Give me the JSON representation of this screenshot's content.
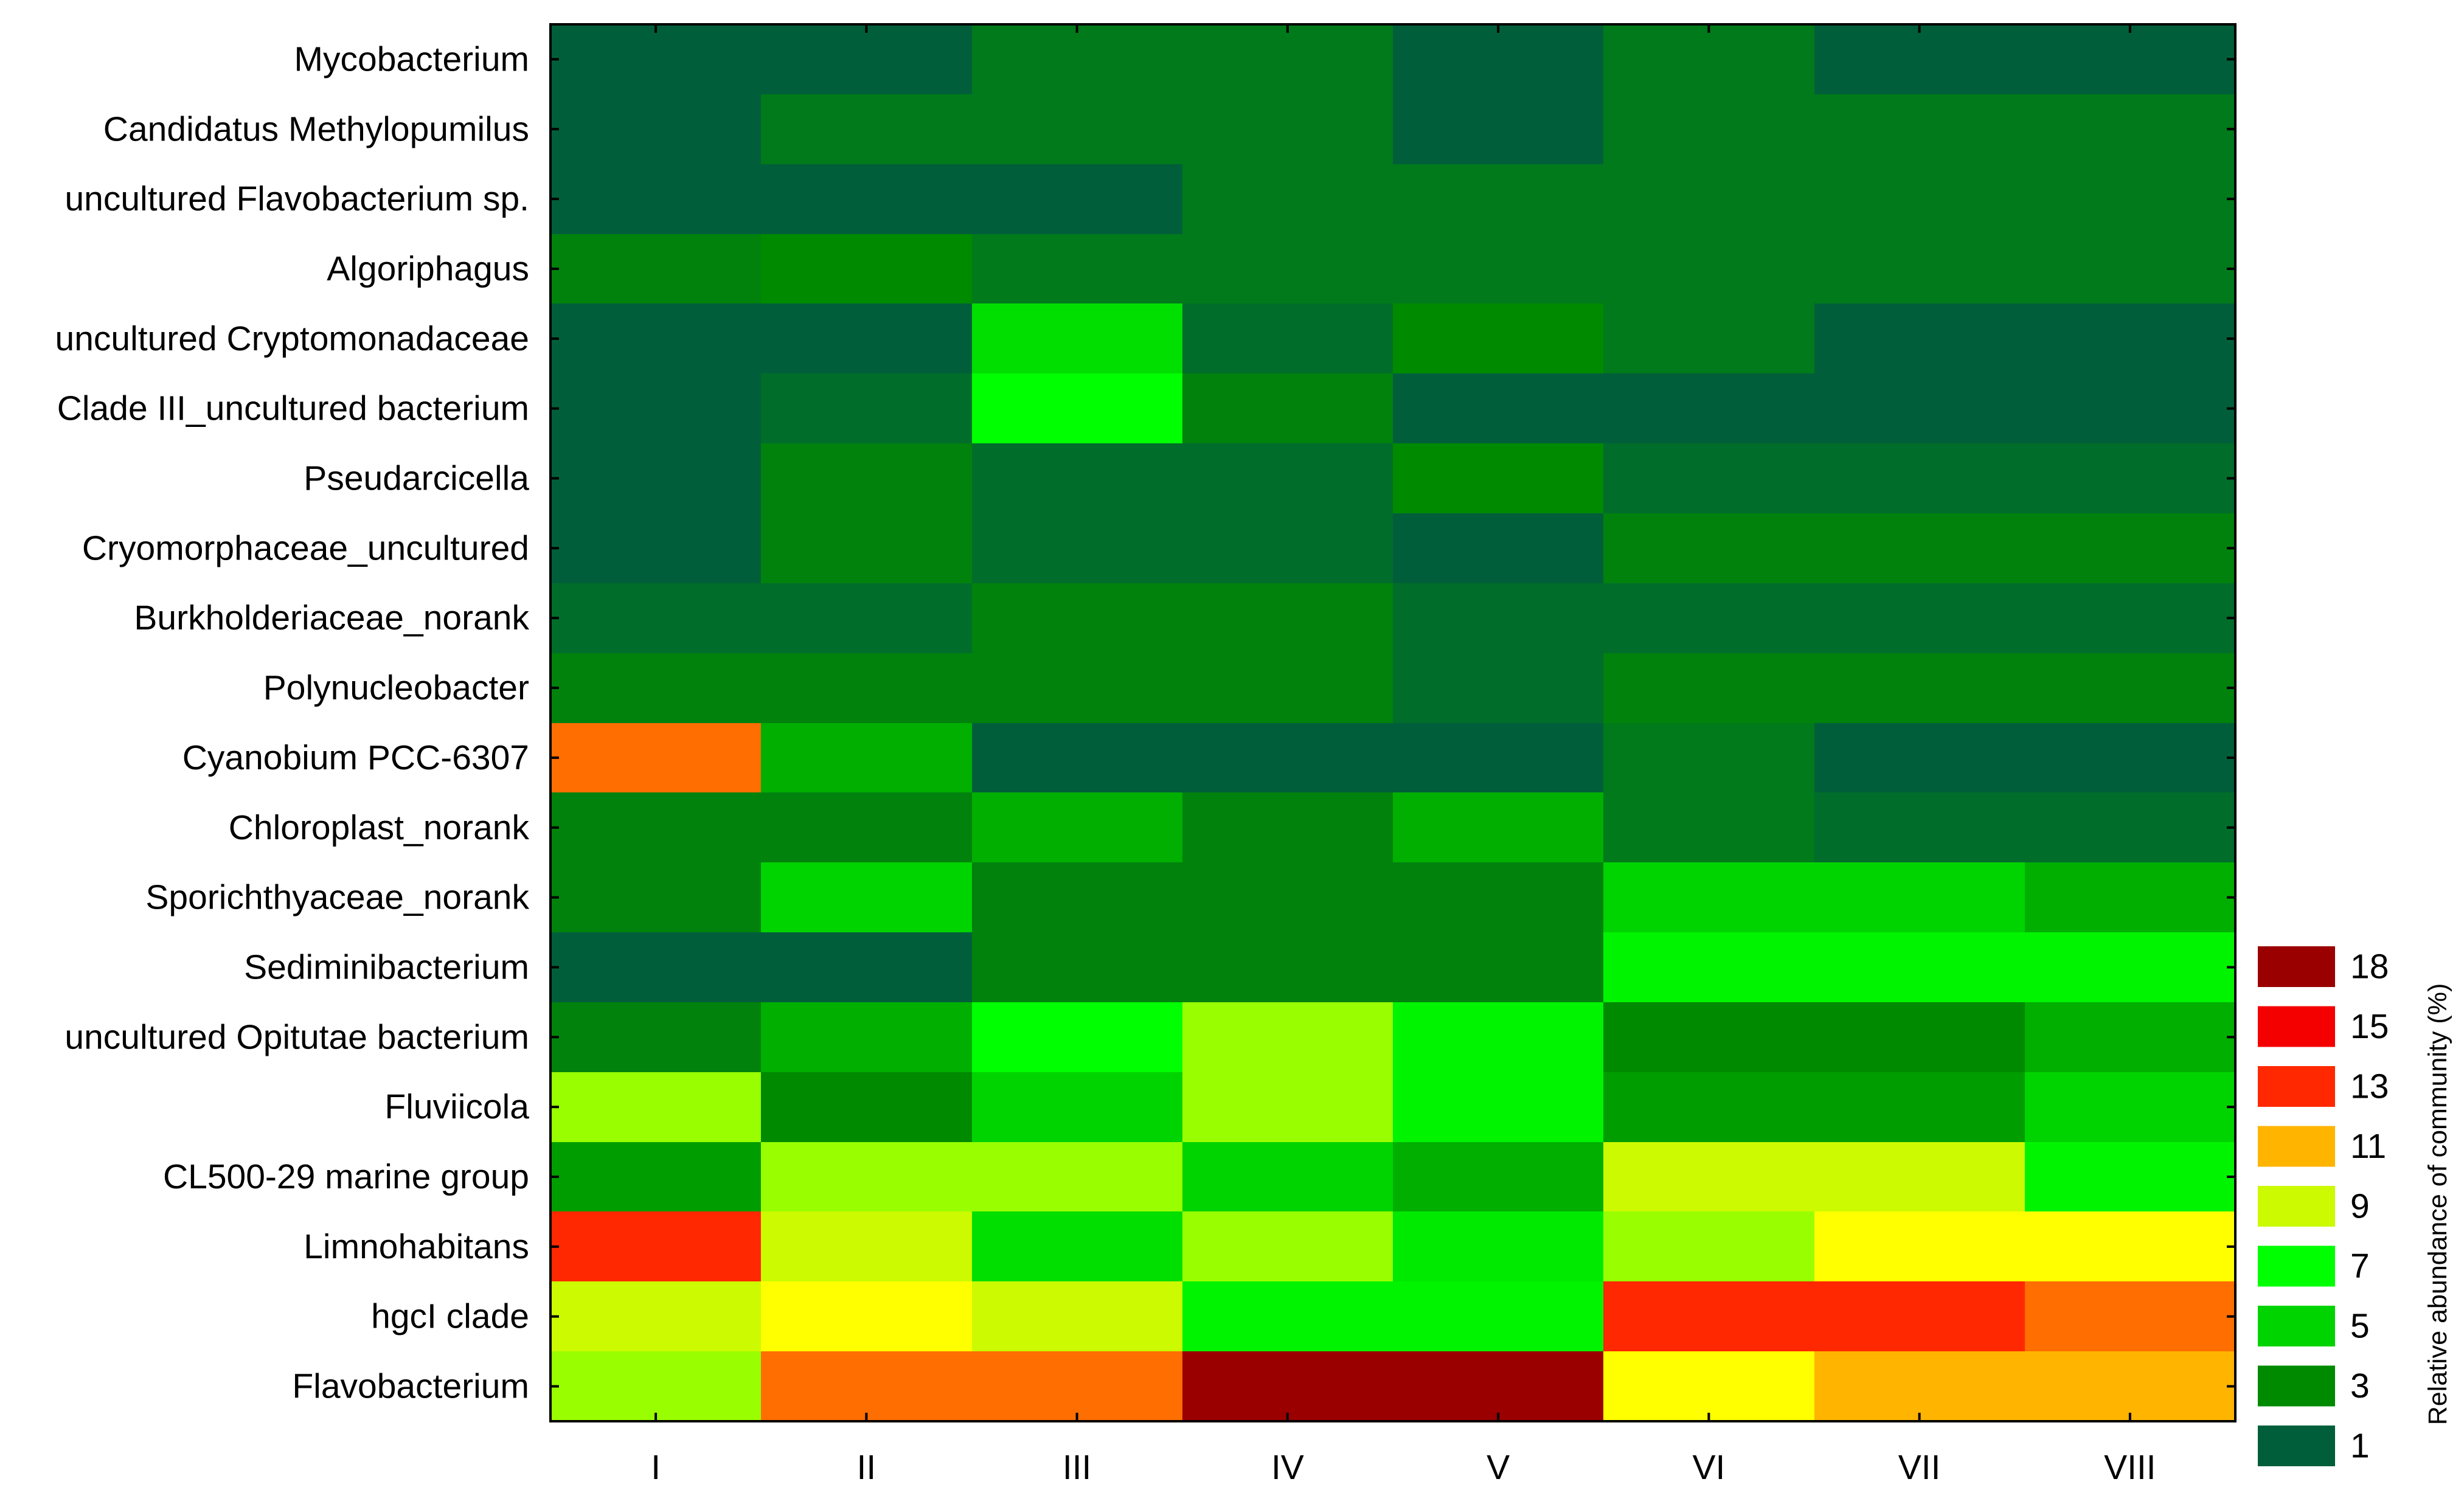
{
  "chart_data": {
    "type": "heatmap",
    "rows": [
      "Mycobacterium",
      "Candidatus Methylopumilus",
      "uncultured Flavobacterium sp.",
      "Algoriphagus",
      "uncultured Cryptomonadaceae",
      "Clade III_uncultured bacterium",
      "Pseudarcicella",
      "Cryomorphaceae_uncultured",
      "Burkholderiaceae_norank",
      "Polynucleobacter",
      "Cyanobium PCC-6307",
      "Chloroplast_norank",
      "Sporichthyaceae_norank",
      "Sediminibacterium",
      "uncultured Opitutae bacterium",
      "Fluviicola",
      "CL500-29 marine group",
      "Limnohabitans",
      "hgcI clade",
      "Flavobacterium"
    ],
    "columns": [
      "I",
      "II",
      "III",
      "IV",
      "V",
      "VI",
      "VII",
      "VIII"
    ],
    "values": [
      [
        1,
        1,
        2,
        2,
        1,
        2,
        1,
        1
      ],
      [
        1,
        2,
        2,
        2,
        1,
        2,
        2,
        2
      ],
      [
        1,
        1,
        1,
        2,
        2,
        2,
        2,
        2
      ],
      [
        2.5,
        3,
        2,
        2,
        2,
        2,
        2,
        2
      ],
      [
        1,
        1,
        5.5,
        1.5,
        3,
        2,
        1,
        1
      ],
      [
        1,
        1.5,
        7,
        2.5,
        1,
        1,
        1,
        1
      ],
      [
        1,
        2.5,
        1.5,
        1.5,
        3,
        1.5,
        1.5,
        1.5
      ],
      [
        1,
        2.5,
        1.5,
        1.5,
        1,
        2.5,
        2.5,
        2.5
      ],
      [
        1.5,
        1.5,
        2.5,
        2.5,
        1.5,
        1.5,
        1.5,
        1.5
      ],
      [
        2.5,
        2.5,
        2.5,
        2.5,
        1.5,
        2.5,
        2.5,
        2.5
      ],
      [
        12,
        4,
        1,
        1,
        1,
        2,
        1,
        1
      ],
      [
        2.5,
        2.5,
        4,
        2.5,
        4,
        2,
        1.5,
        1.5
      ],
      [
        2.5,
        5,
        2.5,
        2.5,
        2.5,
        5,
        5,
        4
      ],
      [
        1,
        1,
        2.5,
        2.5,
        2.5,
        6.5,
        6.5,
        6.5
      ],
      [
        2.5,
        4,
        7,
        8.5,
        6.5,
        3,
        3,
        4
      ],
      [
        8.5,
        3,
        5,
        8.5,
        6.5,
        3.5,
        3.5,
        5
      ],
      [
        3.5,
        8.5,
        8.5,
        5,
        4,
        9,
        9,
        6.5
      ],
      [
        13,
        9,
        5.5,
        8.5,
        6,
        8.5,
        10,
        10
      ],
      [
        9,
        10,
        9,
        6.5,
        6.5,
        13,
        13,
        12
      ],
      [
        8.5,
        12,
        12,
        18,
        18,
        10,
        11,
        11
      ]
    ],
    "legend": {
      "title": "Relative abundance of community (%)",
      "levels": [
        18,
        15,
        13,
        11,
        9,
        7,
        5,
        3,
        1
      ],
      "colors": [
        "#9b0000",
        "#f40000",
        "#ff2800",
        "#ffb400",
        "#ccfa00",
        "#00ff00",
        "#00d400",
        "#008a00",
        "#005f3a"
      ]
    },
    "color_stops": [
      {
        "v": 1,
        "color": "#005f3a"
      },
      {
        "v": 2,
        "color": "#007a1a"
      },
      {
        "v": 3,
        "color": "#008a00"
      },
      {
        "v": 5,
        "color": "#00d400"
      },
      {
        "v": 7,
        "color": "#00ff00"
      },
      {
        "v": 8.5,
        "color": "#99ff00"
      },
      {
        "v": 9,
        "color": "#ccfa00"
      },
      {
        "v": 10,
        "color": "#ffff00"
      },
      {
        "v": 11,
        "color": "#ffb400"
      },
      {
        "v": 12,
        "color": "#ff6e00"
      },
      {
        "v": 13,
        "color": "#ff2800"
      },
      {
        "v": 15,
        "color": "#f40000"
      },
      {
        "v": 18,
        "color": "#9b0000"
      }
    ]
  }
}
